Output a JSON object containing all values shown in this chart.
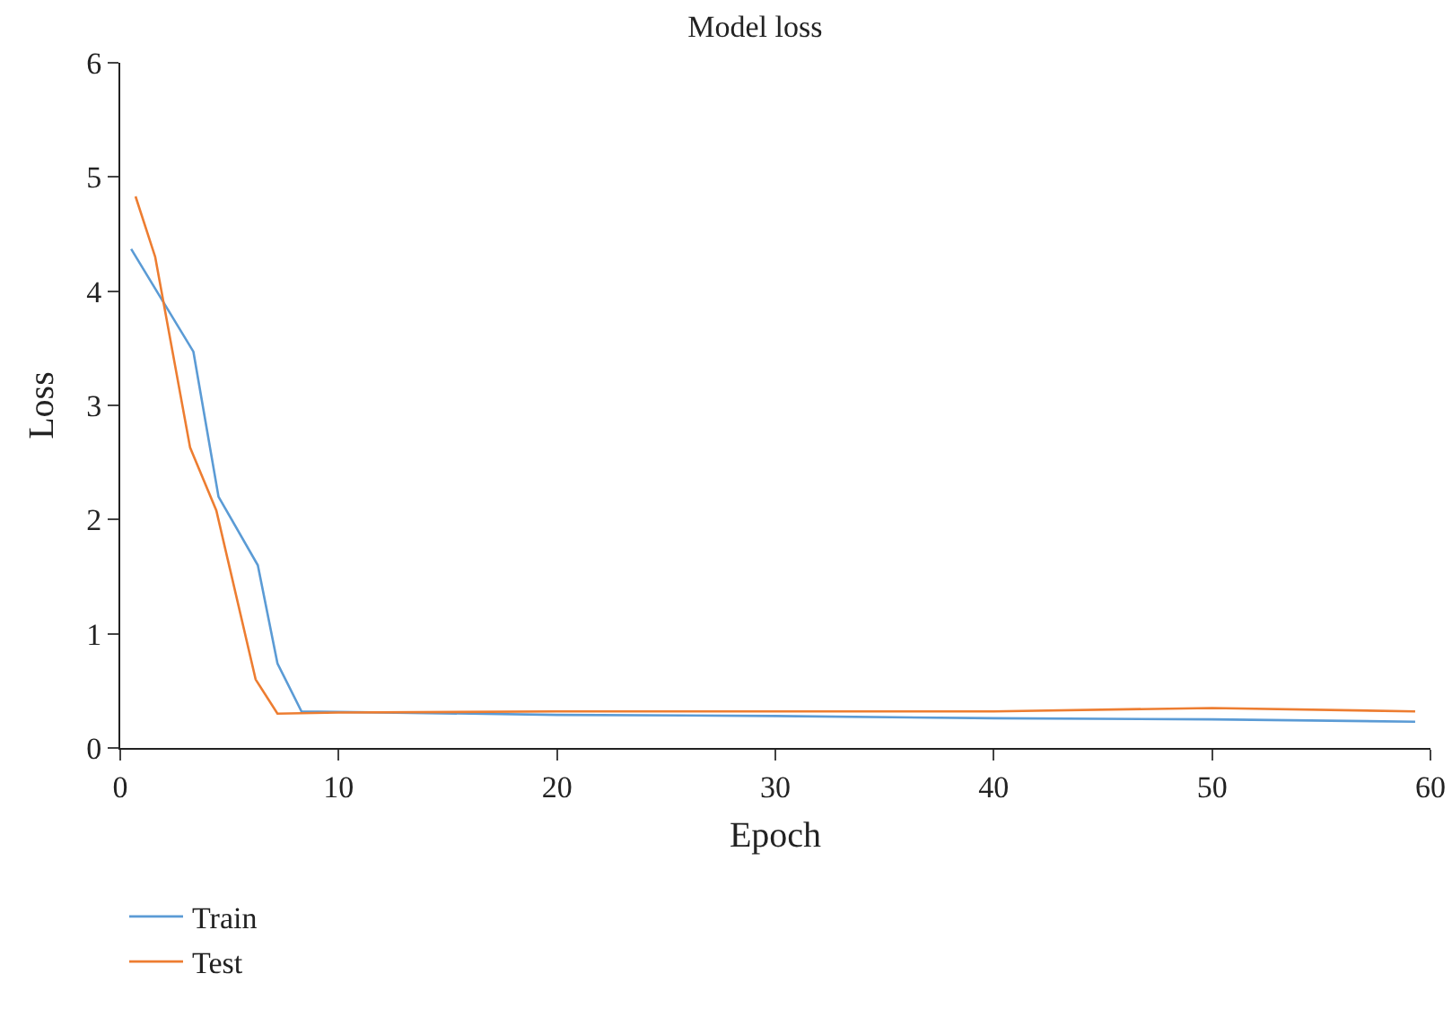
{
  "chart_data": {
    "type": "line",
    "title": "Model loss",
    "xlabel": "Epoch",
    "ylabel": "Loss",
    "xlim": [
      0,
      60
    ],
    "xticks": [
      0,
      10,
      20,
      30,
      40,
      50,
      60
    ],
    "ylim": [
      0,
      6
    ],
    "yticks": [
      0,
      1,
      2,
      3,
      4,
      5,
      6
    ],
    "grid": false,
    "legend": "bottom left",
    "marker": "none",
    "line_style": "solid",
    "series": [
      {
        "name": "Train",
        "color": "#5b9bd5",
        "x": [
          0.5,
          3.35,
          4.5,
          6.3,
          7.2,
          8.3,
          20,
          30,
          40,
          50,
          59.3
        ],
        "values": [
          4.37,
          3.47,
          2.2,
          1.6,
          0.74,
          0.32,
          0.29,
          0.28,
          0.26,
          0.25,
          0.23
        ]
      },
      {
        "name": "Test",
        "color": "#ed7d31",
        "x": [
          0.7,
          1.6,
          3.2,
          4.4,
          6.2,
          7.2,
          10,
          20,
          30,
          40,
          50,
          59.3
        ],
        "values": [
          4.83,
          4.3,
          2.63,
          2.08,
          0.6,
          0.3,
          0.31,
          0.32,
          0.32,
          0.32,
          0.35,
          0.32
        ]
      }
    ]
  }
}
